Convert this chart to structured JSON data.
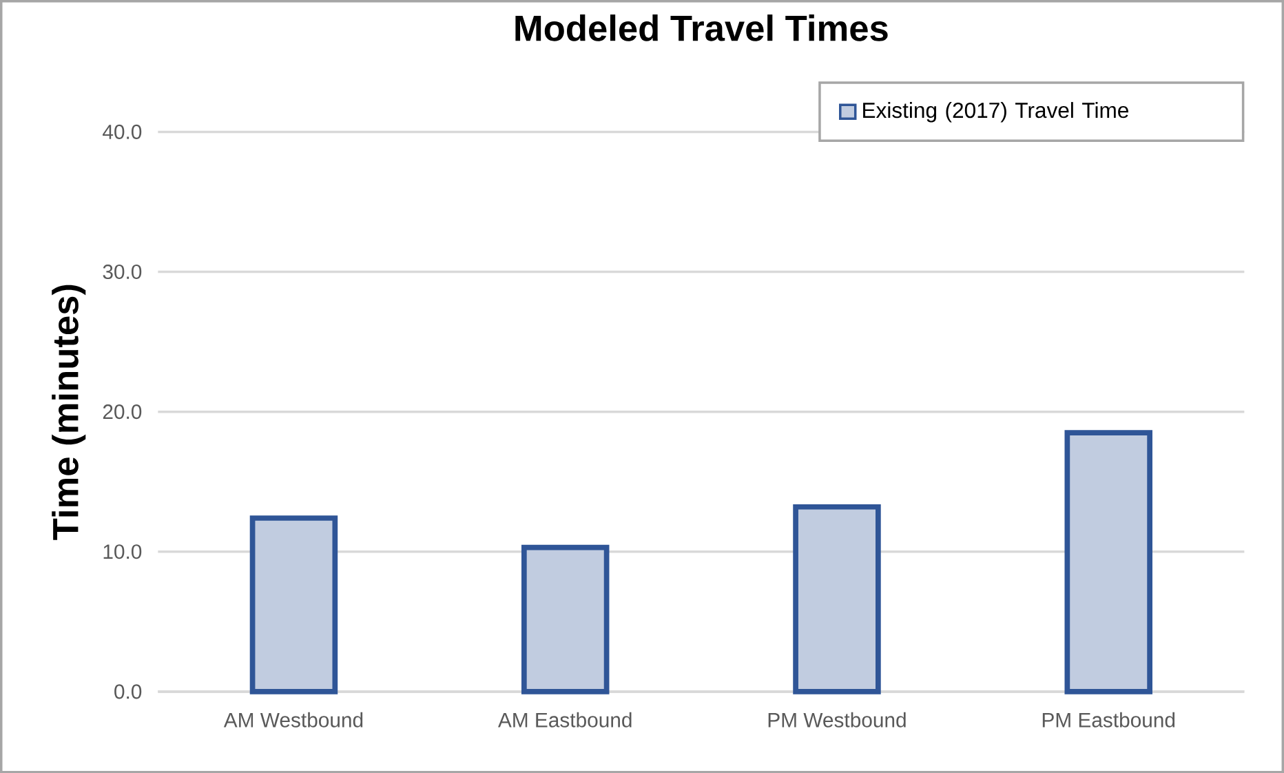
{
  "chart_data": {
    "type": "bar",
    "title": "Modeled Travel Times",
    "ylabel": "Time (minutes)",
    "categories": [
      "AM Westbound",
      "AM Eastbound",
      "PM Westbound",
      "PM Eastbound"
    ],
    "series": [
      {
        "name": "Existing (2017) Travel Time",
        "color": "#2f5597",
        "values": [
          12.4,
          10.3,
          13.2,
          18.5
        ]
      }
    ],
    "ylim": [
      0,
      40
    ],
    "yticks": [
      {
        "value": 0,
        "label": "0.0"
      },
      {
        "value": 10,
        "label": "10.0"
      },
      {
        "value": 20,
        "label": "20.0"
      },
      {
        "value": 30,
        "label": "30.0"
      },
      {
        "value": 40,
        "label": "40.0"
      }
    ],
    "grid": "y",
    "legend": "top right"
  }
}
